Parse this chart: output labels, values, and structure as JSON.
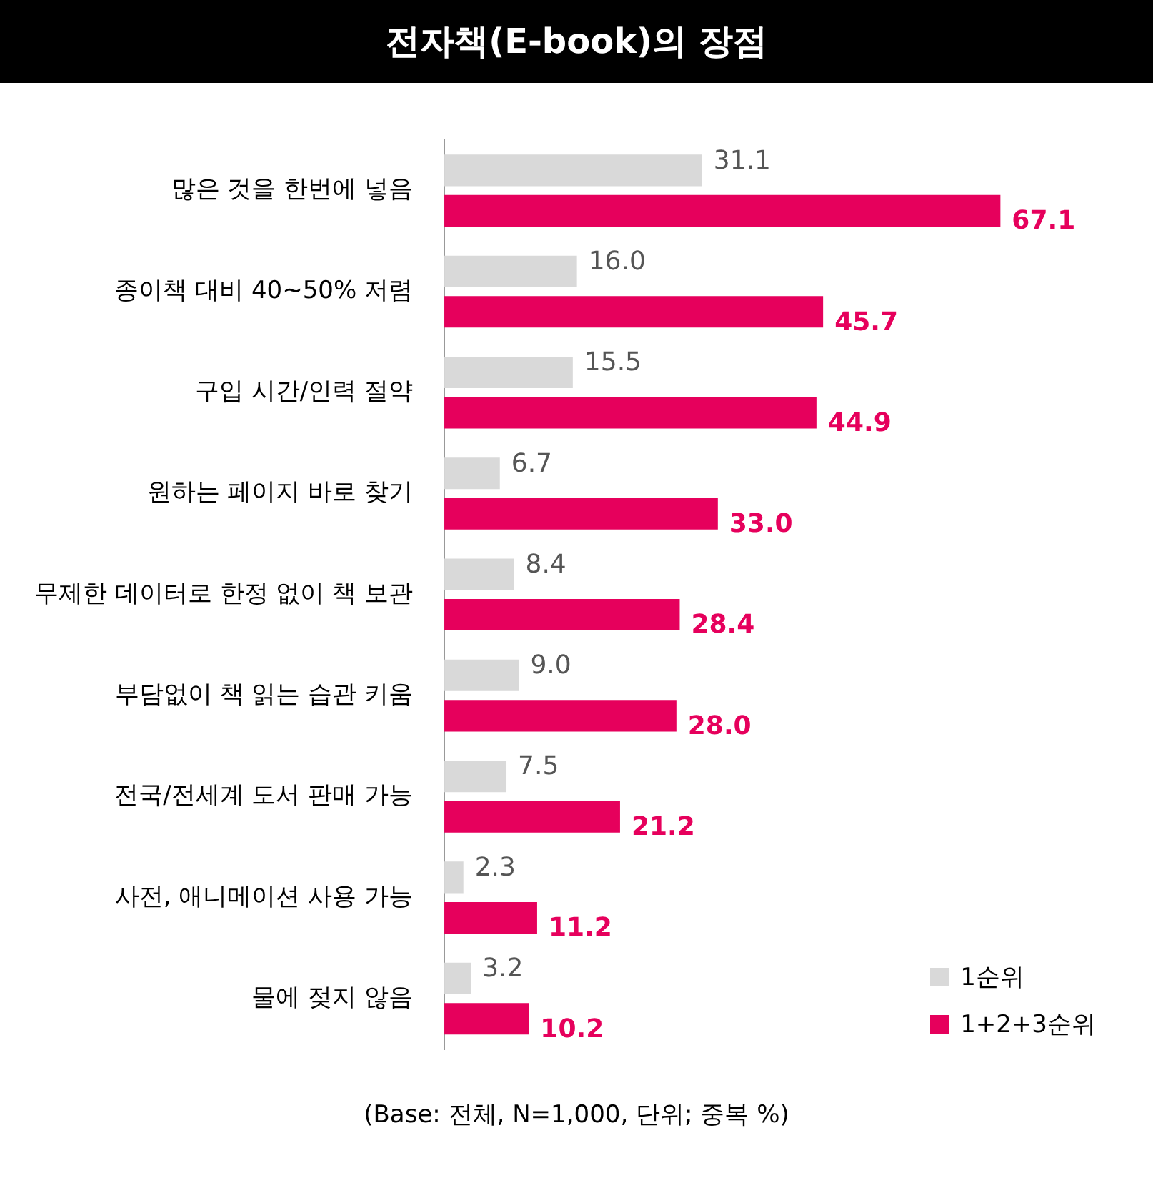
{
  "chart_data": {
    "type": "bar",
    "orientation": "horizontal",
    "title": "전자책(E-book)의 장점",
    "categories": [
      "많은 것을 한번에 넣음",
      "종이책 대비 40~50% 저렴",
      "구입 시간/인력 절약",
      "원하는 페이지 바로 찾기",
      "무제한 데이터로 한정 없이 책 보관",
      "부담없이 책 읽는 습관 키움",
      "전국/전세계 도서 판매 가능",
      "사전, 애니메이션 사용 가능",
      "물에 젖지 않음"
    ],
    "series": [
      {
        "name": "1순위",
        "color": "#d9d9d9",
        "values": [
          31.1,
          16.0,
          15.5,
          6.7,
          8.4,
          9.0,
          7.5,
          2.3,
          3.2
        ],
        "value_labels": [
          "31.1",
          "16.0",
          "15.5",
          "6.7",
          "8.4",
          "9.0",
          "7.5",
          "2.3",
          "3.2"
        ]
      },
      {
        "name": "1+2+3순위",
        "color": "#e6005c",
        "values": [
          67.1,
          45.7,
          44.9,
          33.0,
          28.4,
          28.0,
          21.2,
          11.2,
          10.2
        ],
        "value_labels": [
          "67.1",
          "45.7",
          "44.9",
          "33.0",
          "28.4",
          "28.0",
          "21.2",
          "11.2",
          "10.2"
        ]
      }
    ],
    "legend": "bottom right",
    "grid": false,
    "annotations": [
      "(Base: 전체, N=1,000, 단위; 중복 %)"
    ]
  }
}
